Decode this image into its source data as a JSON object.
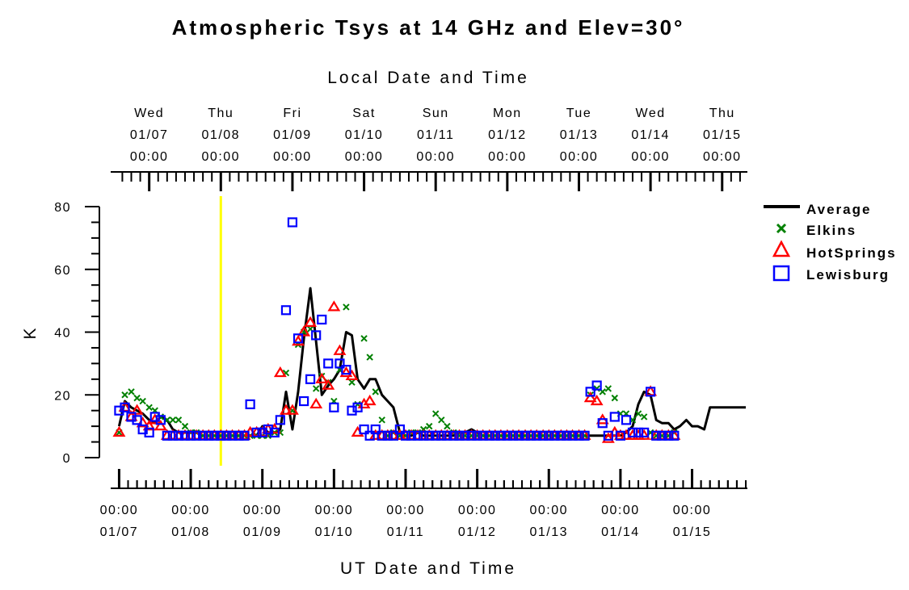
{
  "chart_data": {
    "type": "line",
    "title": "Atmospheric Tsys at 14 GHz and Elev=30°",
    "xlabel": "UT Date and Time",
    "x2label": "Local Date and Time",
    "ylabel": "K",
    "ylim": [
      0,
      80
    ],
    "yticks": [
      "0",
      "20",
      "40",
      "60",
      "80"
    ],
    "xlim": [
      -0.05,
      8.75
    ],
    "x_unit": "days since 01/07 00:00 UT",
    "bottom_ticks": [
      {
        "time": "00:00",
        "date": "01/07",
        "x": 0
      },
      {
        "time": "00:00",
        "date": "01/08",
        "x": 1
      },
      {
        "time": "00:00",
        "date": "01/09",
        "x": 2
      },
      {
        "time": "00:00",
        "date": "01/10",
        "x": 3
      },
      {
        "time": "00:00",
        "date": "01/11",
        "x": 4
      },
      {
        "time": "00:00",
        "date": "01/12",
        "x": 5
      },
      {
        "time": "00:00",
        "date": "01/13",
        "x": 6
      },
      {
        "time": "00:00",
        "date": "01/14",
        "x": 7
      },
      {
        "time": "00:00",
        "date": "01/15",
        "x": 8
      }
    ],
    "top_ticks": [
      {
        "day": "Wed",
        "date": "01/07",
        "time": "00:00",
        "x": 0.42
      },
      {
        "day": "Thu",
        "date": "01/08",
        "time": "00:00",
        "x": 1.42
      },
      {
        "day": "Fri",
        "date": "01/09",
        "time": "00:00",
        "x": 2.42
      },
      {
        "day": "Sat",
        "date": "01/10",
        "time": "00:00",
        "x": 3.42
      },
      {
        "day": "Sun",
        "date": "01/11",
        "time": "00:00",
        "x": 4.42
      },
      {
        "day": "Mon",
        "date": "01/12",
        "time": "00:00",
        "x": 5.42
      },
      {
        "day": "Tue",
        "date": "01/13",
        "time": "00:00",
        "x": 6.42
      },
      {
        "day": "Wed",
        "date": "01/14",
        "time": "00:00",
        "x": 7.42
      },
      {
        "day": "Thu",
        "date": "01/15",
        "time": "00:00",
        "x": 8.42
      }
    ],
    "current_time_marker": {
      "x": 1.42,
      "color": "#ffff00"
    },
    "colors": {
      "average": "#000000",
      "elkins": "#008000",
      "hotsprings": "#ff0000",
      "lewisburg": "#0000ff",
      "marker": "#ffff00"
    },
    "series": [
      {
        "name": "Average",
        "marker": "line",
        "color": "#000000",
        "x": [
          0,
          0.08,
          0.17,
          0.25,
          0.33,
          0.42,
          0.5,
          0.58,
          0.67,
          0.75,
          0.83,
          0.92,
          1.0,
          1.08,
          1.17,
          1.25,
          1.33,
          1.42,
          1.5,
          1.58,
          1.67,
          1.75,
          1.83,
          1.92,
          2.0,
          2.08,
          2.17,
          2.25,
          2.33,
          2.42,
          2.5,
          2.58,
          2.67,
          2.75,
          2.83,
          2.92,
          3.0,
          3.08,
          3.17,
          3.25,
          3.33,
          3.42,
          3.5,
          3.58,
          3.67,
          3.75,
          3.83,
          3.92,
          4.0,
          4.08,
          4.17,
          4.25,
          4.33,
          4.42,
          4.5,
          4.58,
          4.67,
          4.75,
          4.83,
          4.92,
          5.0,
          5.08,
          5.17,
          5.25,
          5.33,
          5.42,
          5.5,
          5.58,
          5.67,
          5.75,
          5.83,
          5.92,
          6.0,
          6.08,
          6.17,
          6.25,
          6.33,
          6.42,
          6.5,
          6.58,
          6.67,
          6.75,
          6.83,
          6.92,
          7.0,
          7.08,
          7.17,
          7.25,
          7.33,
          7.42,
          7.5,
          7.58,
          7.67,
          7.75,
          7.83,
          7.92,
          8.0,
          8.08,
          8.17,
          8.25,
          8.33,
          8.42,
          8.5,
          8.58,
          8.67,
          8.75
        ],
        "values": [
          10,
          18,
          16,
          15,
          14,
          12,
          11,
          13,
          12,
          9,
          8,
          8,
          8,
          8,
          7,
          7,
          7,
          7,
          7,
          7,
          7,
          7,
          7,
          7,
          10,
          8,
          8,
          9,
          21,
          9,
          21,
          38,
          54,
          37,
          20,
          23,
          25,
          28,
          40,
          39,
          25,
          22,
          25,
          25,
          20,
          18,
          16,
          8,
          7,
          7,
          8,
          7,
          7,
          7,
          7,
          7,
          7,
          8,
          8,
          9,
          8,
          7,
          7,
          7,
          7,
          7,
          7,
          7,
          7,
          7,
          7,
          7,
          7,
          7,
          7,
          7,
          7,
          7,
          7,
          7,
          7,
          7,
          7,
          7,
          7,
          8,
          10,
          17,
          21,
          20,
          12,
          11,
          11,
          9,
          10,
          12,
          10,
          10,
          9,
          16,
          16,
          16,
          16,
          16,
          16,
          16
        ]
      },
      {
        "name": "Elkins",
        "marker": "x",
        "color": "#008000",
        "x": [
          0,
          0.08,
          0.17,
          0.25,
          0.33,
          0.42,
          0.5,
          0.58,
          0.67,
          0.75,
          0.83,
          0.92,
          1.0,
          1.08,
          1.17,
          1.25,
          1.33,
          1.42,
          1.5,
          1.58,
          1.67,
          1.75,
          1.83,
          1.92,
          2.0,
          2.08,
          2.17,
          2.25,
          2.33,
          2.42,
          2.5,
          2.58,
          2.67,
          2.75,
          2.83,
          2.92,
          3.0,
          3.08,
          3.17,
          3.25,
          3.33,
          3.42,
          3.5,
          3.58,
          3.67,
          3.75,
          3.83,
          3.92,
          4.0,
          4.08,
          4.17,
          4.25,
          4.33,
          4.42,
          4.5,
          4.58,
          4.67,
          4.75,
          4.83,
          4.92,
          5.0,
          5.08,
          5.17,
          5.25,
          5.33,
          5.42,
          5.5,
          5.58,
          5.67,
          5.75,
          5.83,
          5.92,
          6.0,
          6.08,
          6.17,
          6.25,
          6.33,
          6.42,
          6.5,
          6.58,
          6.67,
          6.75,
          6.83,
          6.92,
          7.0,
          7.08,
          7.17,
          7.25,
          7.33,
          7.42,
          7.5,
          7.58,
          7.67,
          7.75
        ],
        "values": [
          8,
          20,
          21,
          19,
          18,
          16,
          15,
          13,
          12,
          12,
          12,
          10,
          8,
          8,
          7,
          7,
          7,
          7,
          7,
          7,
          7,
          7,
          7,
          7,
          7,
          7,
          8,
          8,
          27,
          15,
          36,
          40,
          41,
          22,
          26,
          24,
          18,
          28,
          48,
          24,
          17,
          38,
          32,
          21,
          12,
          7,
          8,
          7,
          7,
          8,
          8,
          9,
          10,
          14,
          12,
          10,
          8,
          7,
          7,
          7,
          7,
          7,
          7,
          7,
          7,
          7,
          7,
          7,
          7,
          7,
          7,
          7,
          7,
          7,
          7,
          7,
          7,
          7,
          7,
          20,
          22,
          21,
          22,
          19,
          14,
          14,
          12,
          14,
          13,
          8,
          7,
          7,
          7,
          8
        ]
      },
      {
        "name": "HotSprings",
        "marker": "triangle",
        "color": "#ff0000",
        "x": [
          0,
          0.08,
          0.17,
          0.25,
          0.33,
          0.42,
          0.5,
          0.58,
          0.67,
          0.75,
          0.83,
          0.92,
          1.0,
          1.08,
          1.17,
          1.25,
          1.33,
          1.42,
          1.5,
          1.58,
          1.67,
          1.75,
          1.83,
          1.92,
          2.0,
          2.08,
          2.17,
          2.25,
          2.33,
          2.42,
          2.5,
          2.58,
          2.67,
          2.75,
          2.83,
          2.92,
          3.0,
          3.08,
          3.17,
          3.25,
          3.33,
          3.42,
          3.5,
          3.58,
          3.67,
          3.75,
          3.83,
          3.92,
          4.0,
          4.08,
          4.17,
          4.25,
          4.33,
          4.42,
          4.5,
          4.58,
          4.67,
          4.75,
          4.83,
          4.92,
          5.0,
          5.08,
          5.17,
          5.25,
          5.33,
          5.42,
          5.5,
          5.58,
          5.67,
          5.75,
          5.83,
          5.92,
          6.0,
          6.08,
          6.17,
          6.25,
          6.33,
          6.42,
          6.5,
          6.58,
          6.67,
          6.75,
          6.83,
          6.92,
          7.0,
          7.08,
          7.17,
          7.25,
          7.33,
          7.42,
          7.5,
          7.58,
          7.67,
          7.75
        ],
        "values": [
          8,
          16,
          13,
          15,
          11,
          10,
          12,
          10,
          7,
          7,
          7,
          7,
          7,
          7,
          7,
          7,
          7,
          7,
          7,
          7,
          7,
          7,
          8,
          8,
          8,
          9,
          9,
          27,
          15,
          15,
          37,
          40,
          43,
          17,
          25,
          23,
          48,
          34,
          27,
          26,
          8,
          17,
          18,
          7,
          7,
          7,
          7,
          7,
          7,
          7,
          7,
          7,
          7,
          7,
          7,
          7,
          7,
          7,
          7,
          7,
          7,
          7,
          7,
          7,
          7,
          7,
          7,
          7,
          7,
          7,
          7,
          7,
          7,
          7,
          7,
          7,
          7,
          7,
          7,
          19,
          18,
          12,
          6,
          8,
          7,
          7,
          7,
          7,
          7,
          21,
          7,
          7,
          7,
          7
        ]
      },
      {
        "name": "Lewisburg",
        "marker": "square",
        "color": "#0000ff",
        "x": [
          0,
          0.08,
          0.17,
          0.25,
          0.33,
          0.42,
          0.5,
          0.58,
          0.67,
          0.75,
          0.83,
          0.92,
          1.0,
          1.08,
          1.17,
          1.25,
          1.33,
          1.42,
          1.5,
          1.58,
          1.67,
          1.75,
          1.83,
          1.92,
          2.0,
          2.08,
          2.17,
          2.25,
          2.33,
          2.42,
          2.5,
          2.58,
          2.67,
          2.75,
          2.83,
          2.92,
          3.0,
          3.08,
          3.17,
          3.25,
          3.33,
          3.42,
          3.5,
          3.58,
          3.67,
          3.75,
          3.83,
          3.92,
          4.0,
          4.08,
          4.17,
          4.25,
          4.33,
          4.42,
          4.5,
          4.58,
          4.67,
          4.75,
          4.83,
          4.92,
          5.0,
          5.08,
          5.17,
          5.25,
          5.33,
          5.42,
          5.5,
          5.58,
          5.67,
          5.75,
          5.83,
          5.92,
          6.0,
          6.08,
          6.17,
          6.25,
          6.33,
          6.42,
          6.5,
          6.58,
          6.67,
          6.75,
          6.83,
          6.92,
          7.0,
          7.08,
          7.17,
          7.25,
          7.33,
          7.42,
          7.5,
          7.58,
          7.67,
          7.75
        ],
        "values": [
          15,
          16,
          13,
          12,
          9,
          8,
          13,
          12,
          7,
          7,
          7,
          7,
          7,
          7,
          7,
          7,
          7,
          7,
          7,
          7,
          7,
          7,
          17,
          8,
          8,
          9,
          8,
          12,
          47,
          75,
          38,
          18,
          25,
          39,
          44,
          30,
          16,
          30,
          28,
          15,
          16,
          9,
          7,
          9,
          7,
          7,
          7,
          9,
          7,
          7,
          7,
          7,
          7,
          7,
          7,
          7,
          7,
          7,
          7,
          7,
          7,
          7,
          7,
          7,
          7,
          7,
          7,
          7,
          7,
          7,
          7,
          7,
          7,
          7,
          7,
          7,
          7,
          7,
          7,
          21,
          23,
          11,
          7,
          13,
          7,
          12,
          8,
          8,
          8,
          21,
          7,
          7,
          7,
          7
        ]
      }
    ]
  }
}
